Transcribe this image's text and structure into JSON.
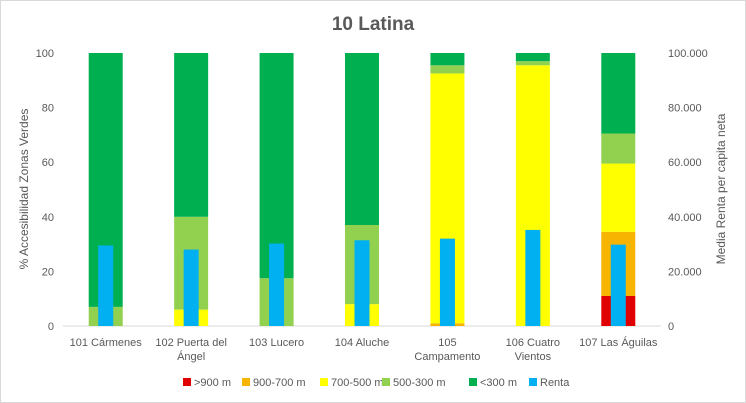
{
  "chart_data": {
    "type": "bar",
    "title": "10 Latina",
    "ylabel": "% Accesibilidad Zonas Verdes",
    "y2label": "Media Renta per capita neta",
    "ylim": [
      0,
      100
    ],
    "y2lim": [
      0,
      100000
    ],
    "yticks": [
      "0",
      "20",
      "40",
      "60",
      "80",
      "100"
    ],
    "y2ticks": [
      "0",
      "20.000",
      "40.000",
      "60.000",
      "80.000",
      "100.000"
    ],
    "grid": false,
    "legend_position": "bottom",
    "categories": [
      [
        "101 Cármenes"
      ],
      [
        "102 Puerta del",
        "Ángel"
      ],
      [
        "103 Lucero"
      ],
      [
        "104 Aluche"
      ],
      [
        "105",
        "Campamento"
      ],
      [
        "106 Cuatro",
        "Vientos"
      ],
      [
        "107 Las Águilas"
      ]
    ],
    "stacked_series": [
      {
        "name": ">900 m",
        "color": "#e00000",
        "values": [
          0,
          0,
          0,
          0,
          0,
          0,
          11
        ]
      },
      {
        "name": "900-700 m",
        "color": "#f7b400",
        "values": [
          0,
          0,
          0,
          0,
          1,
          0,
          23.5
        ]
      },
      {
        "name": "700-500 m",
        "color": "#ffff00",
        "values": [
          0,
          6,
          0,
          8,
          91.5,
          95.5,
          25
        ]
      },
      {
        "name": "500-300 m",
        "color": "#92d050",
        "values": [
          7,
          34,
          17.5,
          29,
          3,
          1.5,
          11
        ]
      },
      {
        "name": "<300 m",
        "color": "#00b050",
        "values": [
          93,
          60,
          82.5,
          63,
          4.5,
          3,
          29.5
        ]
      }
    ],
    "secondary_series": {
      "name": "Renta",
      "color": "#00b0f0",
      "axis": "right",
      "values": [
        29500,
        28000,
        30200,
        31400,
        32000,
        35200,
        29800
      ]
    }
  }
}
